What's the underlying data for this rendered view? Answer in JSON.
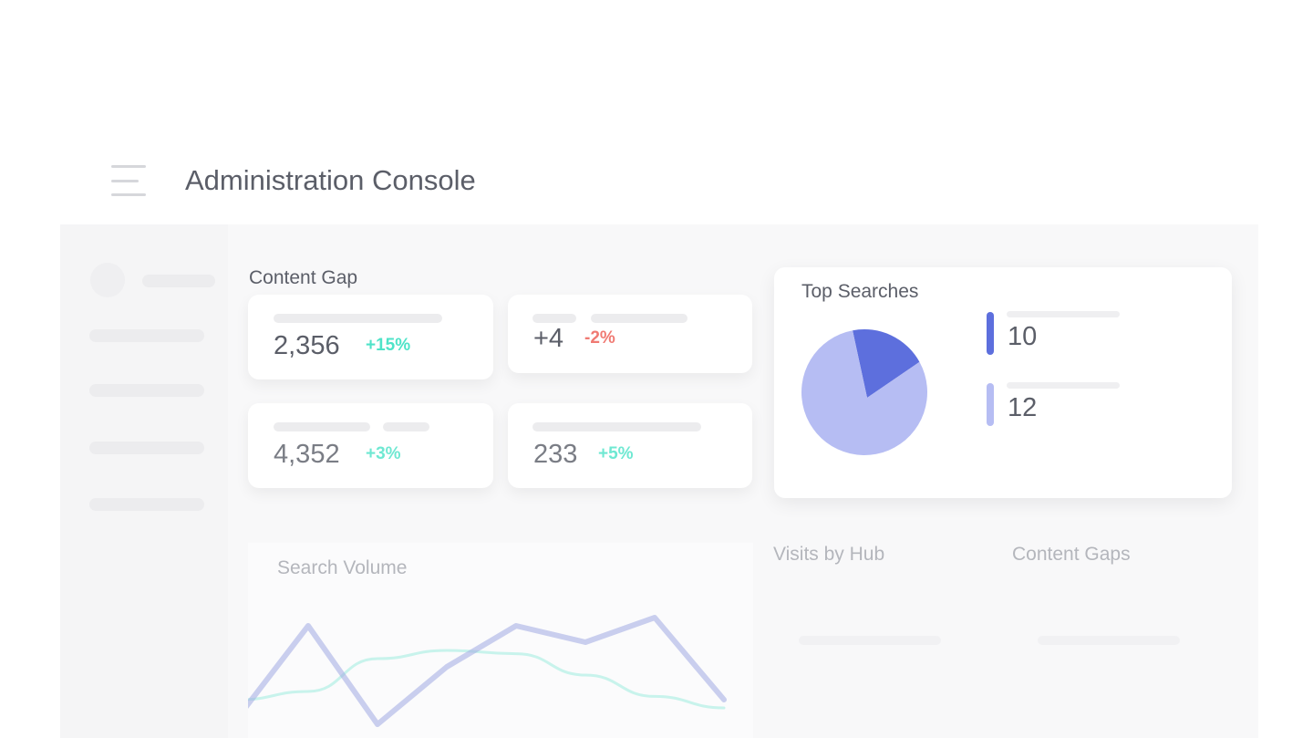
{
  "header": {
    "title": "Administration Console",
    "menu_icon": "hamburger-icon"
  },
  "content_gap": {
    "title": "Content Gap",
    "cards": [
      {
        "value": "2,356",
        "change": "+15%",
        "trend": "up"
      },
      {
        "value": "+4",
        "change": "-2%",
        "trend": "down"
      },
      {
        "value": "4,352",
        "change": "+3%",
        "trend": "up"
      },
      {
        "value": "233",
        "change": "+5%",
        "trend": "up"
      }
    ]
  },
  "colors": {
    "up": "#4fe3c8",
    "down": "#f07a73",
    "pie_dark": "#5d6fdd",
    "pie_light": "#b6bdf3"
  },
  "top_searches": {
    "title": "Top Searches",
    "legend": [
      {
        "value": "10"
      },
      {
        "value": "12"
      }
    ],
    "chart_data": {
      "type": "pie",
      "slices": [
        {
          "label": "10",
          "share": 0.2
        },
        {
          "label": "12",
          "share": 0.8
        }
      ]
    }
  },
  "search_volume": {
    "title": "Search Volume",
    "chart_data": {
      "type": "line",
      "x": [
        0,
        1,
        2,
        3,
        4,
        5,
        6,
        7
      ],
      "series": [
        {
          "name": "primary",
          "values": [
            0,
            55,
            -5,
            30,
            55,
            45,
            60,
            10
          ]
        },
        {
          "name": "secondary",
          "values": [
            10,
            15,
            35,
            40,
            38,
            25,
            12,
            5
          ]
        }
      ]
    }
  },
  "visits_by_hub": {
    "title": "Visits by Hub"
  },
  "content_gaps": {
    "title": "Content Gaps"
  }
}
